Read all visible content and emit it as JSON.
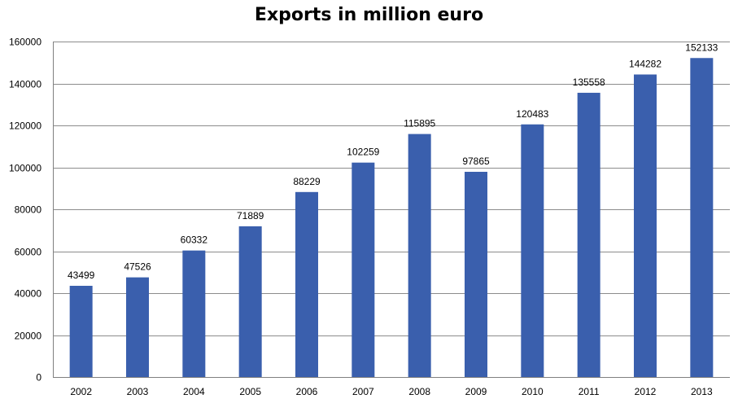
{
  "chart_data": {
    "type": "bar",
    "title": "Exports in million euro",
    "xlabel": "",
    "ylabel": "",
    "categories": [
      "2002",
      "2003",
      "2004",
      "2005",
      "2006",
      "2007",
      "2008",
      "2009",
      "2010",
      "2011",
      "2012",
      "2013"
    ],
    "values": [
      43499,
      47526,
      60332,
      71889,
      88229,
      102259,
      115895,
      97865,
      120483,
      135558,
      144282,
      152133
    ],
    "ylim": [
      0,
      160000
    ],
    "yticks": [
      0,
      20000,
      40000,
      60000,
      80000,
      100000,
      120000,
      140000,
      160000
    ],
    "grid": true,
    "legend": "none",
    "colors": {
      "bar": "#3a5fad",
      "grid": "#8c8c8c",
      "text": "#000000"
    }
  }
}
